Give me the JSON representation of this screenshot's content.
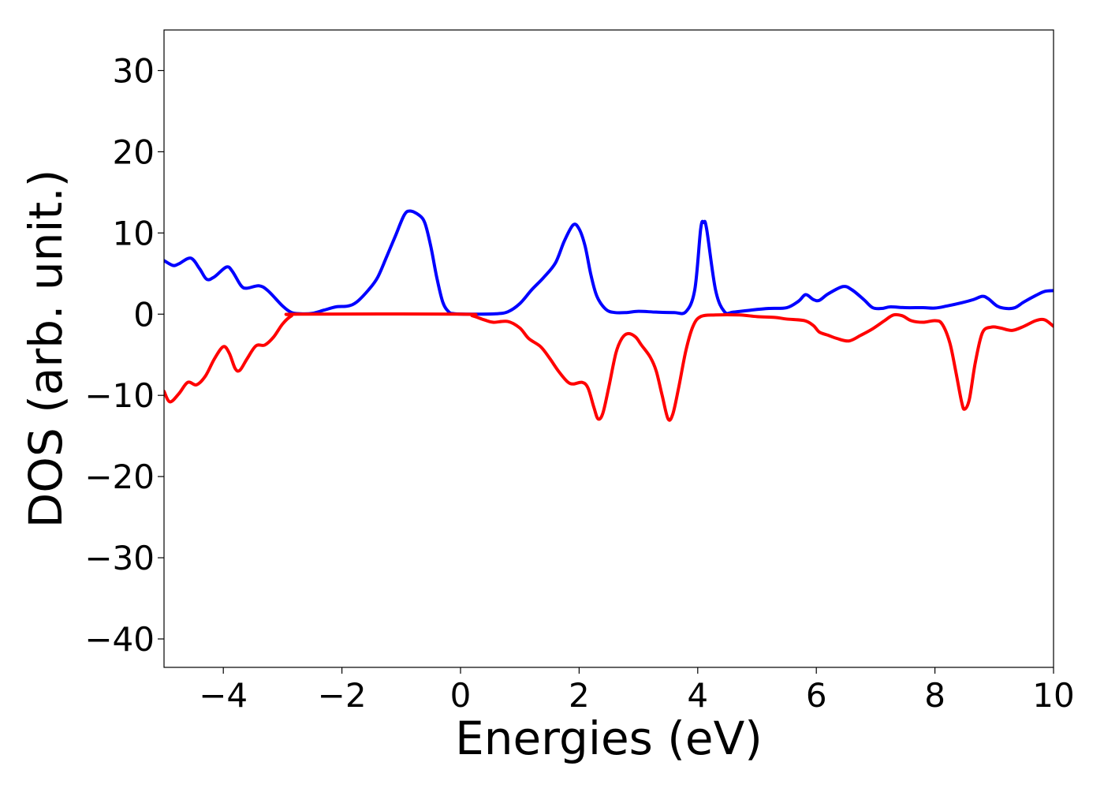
{
  "chart_data": {
    "type": "line",
    "xlabel": "Energies (eV)",
    "ylabel": "DOS (arb. unit.)",
    "xlim": [
      -5,
      10
    ],
    "ylim": [
      -43.5,
      35
    ],
    "grid": false,
    "x_ticks": [
      -4,
      -2,
      0,
      2,
      4,
      6,
      8,
      10
    ],
    "x_tick_labels": [
      "−4",
      "−2",
      "0",
      "2",
      "4",
      "6",
      "8",
      "10"
    ],
    "y_ticks": [
      30,
      20,
      10,
      0,
      -10,
      -20,
      -30,
      -40
    ],
    "y_tick_labels": [
      "30",
      "20",
      "10",
      "0",
      "−10",
      "−20",
      "−30",
      "−40"
    ],
    "series": [
      {
        "color": "#0000ff",
        "points": [
          [
            -5.0,
            6.6
          ],
          [
            -4.85,
            6.0
          ],
          [
            -4.75,
            6.2
          ],
          [
            -4.55,
            6.9
          ],
          [
            -4.4,
            5.6
          ],
          [
            -4.28,
            4.3
          ],
          [
            -4.15,
            4.6
          ],
          [
            -3.95,
            5.8
          ],
          [
            -3.85,
            5.3
          ],
          [
            -3.7,
            3.5
          ],
          [
            -3.6,
            3.2
          ],
          [
            -3.4,
            3.5
          ],
          [
            -3.25,
            2.9
          ],
          [
            -3.0,
            1.0
          ],
          [
            -2.85,
            0.2
          ],
          [
            -2.7,
            0.05
          ],
          [
            -2.5,
            0.1
          ],
          [
            -2.3,
            0.5
          ],
          [
            -2.1,
            0.9
          ],
          [
            -1.9,
            1.0
          ],
          [
            -1.75,
            1.5
          ],
          [
            -1.55,
            3.0
          ],
          [
            -1.4,
            4.5
          ],
          [
            -1.25,
            7.0
          ],
          [
            -1.1,
            9.6
          ],
          [
            -0.95,
            12.2
          ],
          [
            -0.85,
            12.7
          ],
          [
            -0.7,
            12.2
          ],
          [
            -0.6,
            11.2
          ],
          [
            -0.5,
            8.3
          ],
          [
            -0.4,
            4.5
          ],
          [
            -0.3,
            1.5
          ],
          [
            -0.2,
            0.3
          ],
          [
            -0.1,
            0.05
          ],
          [
            0.2,
            0.0
          ],
          [
            0.6,
            0.05
          ],
          [
            0.8,
            0.3
          ],
          [
            1.0,
            1.3
          ],
          [
            1.2,
            3.0
          ],
          [
            1.4,
            4.5
          ],
          [
            1.6,
            6.3
          ],
          [
            1.75,
            9.0
          ],
          [
            1.9,
            11.0
          ],
          [
            2.0,
            10.5
          ],
          [
            2.1,
            8.4
          ],
          [
            2.2,
            4.8
          ],
          [
            2.3,
            2.2
          ],
          [
            2.45,
            0.6
          ],
          [
            2.6,
            0.2
          ],
          [
            2.8,
            0.2
          ],
          [
            3.0,
            0.35
          ],
          [
            3.3,
            0.25
          ],
          [
            3.6,
            0.2
          ],
          [
            3.8,
            0.3
          ],
          [
            3.95,
            3.0
          ],
          [
            4.05,
            10.5
          ],
          [
            4.1,
            11.3
          ],
          [
            4.15,
            10.5
          ],
          [
            4.3,
            3.0
          ],
          [
            4.45,
            0.3
          ],
          [
            4.6,
            0.25
          ],
          [
            4.9,
            0.5
          ],
          [
            5.2,
            0.7
          ],
          [
            5.5,
            0.8
          ],
          [
            5.7,
            1.6
          ],
          [
            5.82,
            2.4
          ],
          [
            5.95,
            1.8
          ],
          [
            6.05,
            1.7
          ],
          [
            6.2,
            2.5
          ],
          [
            6.45,
            3.4
          ],
          [
            6.6,
            3.0
          ],
          [
            6.8,
            1.8
          ],
          [
            6.95,
            0.8
          ],
          [
            7.1,
            0.7
          ],
          [
            7.25,
            0.9
          ],
          [
            7.5,
            0.8
          ],
          [
            7.8,
            0.8
          ],
          [
            8.0,
            0.75
          ],
          [
            8.2,
            1.0
          ],
          [
            8.45,
            1.4
          ],
          [
            8.65,
            1.8
          ],
          [
            8.8,
            2.2
          ],
          [
            8.9,
            1.9
          ],
          [
            9.05,
            1.0
          ],
          [
            9.2,
            0.7
          ],
          [
            9.35,
            0.8
          ],
          [
            9.5,
            1.5
          ],
          [
            9.7,
            2.3
          ],
          [
            9.85,
            2.8
          ],
          [
            10.0,
            2.9
          ]
        ]
      },
      {
        "color": "#ff0000",
        "points": [
          [
            -5.0,
            -9.5
          ],
          [
            -4.9,
            -10.8
          ],
          [
            -4.75,
            -9.8
          ],
          [
            -4.6,
            -8.4
          ],
          [
            -4.45,
            -8.7
          ],
          [
            -4.3,
            -7.6
          ],
          [
            -4.15,
            -5.5
          ],
          [
            -4.0,
            -4.0
          ],
          [
            -3.9,
            -4.8
          ],
          [
            -3.8,
            -6.7
          ],
          [
            -3.72,
            -6.9
          ],
          [
            -3.6,
            -5.5
          ],
          [
            -3.45,
            -3.9
          ],
          [
            -3.3,
            -3.8
          ],
          [
            -3.15,
            -2.8
          ],
          [
            -3.0,
            -1.2
          ],
          [
            -2.85,
            -0.2
          ],
          [
            -2.7,
            0.0
          ],
          [
            0.0,
            0.0
          ],
          [
            0.2,
            -0.2
          ],
          [
            0.4,
            -0.7
          ],
          [
            0.55,
            -1.0
          ],
          [
            0.8,
            -0.9
          ],
          [
            1.0,
            -1.7
          ],
          [
            1.15,
            -3.0
          ],
          [
            1.35,
            -4.0
          ],
          [
            1.5,
            -5.4
          ],
          [
            1.65,
            -7.0
          ],
          [
            1.8,
            -8.3
          ],
          [
            1.9,
            -8.6
          ],
          [
            2.05,
            -8.4
          ],
          [
            2.15,
            -9.1
          ],
          [
            2.25,
            -11.5
          ],
          [
            2.32,
            -12.9
          ],
          [
            2.4,
            -12.2
          ],
          [
            2.5,
            -9.0
          ],
          [
            2.62,
            -4.8
          ],
          [
            2.72,
            -3.0
          ],
          [
            2.82,
            -2.4
          ],
          [
            2.95,
            -2.8
          ],
          [
            3.05,
            -3.8
          ],
          [
            3.2,
            -5.3
          ],
          [
            3.3,
            -7.0
          ],
          [
            3.4,
            -10.0
          ],
          [
            3.5,
            -12.9
          ],
          [
            3.58,
            -12.3
          ],
          [
            3.68,
            -9.0
          ],
          [
            3.8,
            -4.5
          ],
          [
            3.92,
            -1.5
          ],
          [
            4.05,
            -0.3
          ],
          [
            4.3,
            -0.1
          ],
          [
            4.7,
            -0.1
          ],
          [
            5.0,
            -0.3
          ],
          [
            5.3,
            -0.4
          ],
          [
            5.5,
            -0.6
          ],
          [
            5.8,
            -0.8
          ],
          [
            5.95,
            -1.4
          ],
          [
            6.05,
            -2.2
          ],
          [
            6.2,
            -2.6
          ],
          [
            6.35,
            -3.0
          ],
          [
            6.55,
            -3.3
          ],
          [
            6.75,
            -2.6
          ],
          [
            6.95,
            -1.8
          ],
          [
            7.15,
            -0.8
          ],
          [
            7.3,
            -0.1
          ],
          [
            7.45,
            -0.2
          ],
          [
            7.6,
            -0.8
          ],
          [
            7.8,
            -1.0
          ],
          [
            8.0,
            -0.8
          ],
          [
            8.12,
            -1.2
          ],
          [
            8.25,
            -3.5
          ],
          [
            8.35,
            -7.0
          ],
          [
            8.45,
            -10.8
          ],
          [
            8.5,
            -11.7
          ],
          [
            8.58,
            -10.5
          ],
          [
            8.68,
            -6.0
          ],
          [
            8.8,
            -2.3
          ],
          [
            8.95,
            -1.6
          ],
          [
            9.1,
            -1.7
          ],
          [
            9.3,
            -2.0
          ],
          [
            9.5,
            -1.5
          ],
          [
            9.7,
            -0.8
          ],
          [
            9.85,
            -0.7
          ],
          [
            10.0,
            -1.5
          ]
        ]
      }
    ]
  }
}
